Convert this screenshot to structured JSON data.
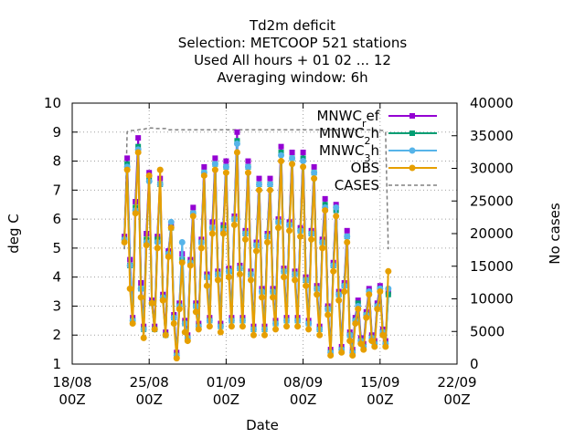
{
  "chart_data": {
    "type": "line",
    "title_lines": [
      "Td2m deficit",
      "Selection: METCOOP    521 stations",
      "Used  All hours  + 01 02 ... 12",
      "Averaging window:  6h"
    ],
    "xlabel": "Date",
    "ylabel": "deg C",
    "y2label": "No cases",
    "ylim": [
      1,
      10
    ],
    "y2lim": [
      0,
      40000
    ],
    "yticks": [
      "1",
      "2",
      "3",
      "4",
      "5",
      "6",
      "7",
      "8",
      "9",
      "10"
    ],
    "y2ticks": [
      "0",
      "5000",
      "10000",
      "15000",
      "20000",
      "25000",
      "30000",
      "35000",
      "40000"
    ],
    "xticks": [
      {
        "day": 0,
        "line1": "18/08",
        "line2": "00Z"
      },
      {
        "day": 7,
        "line1": "25/08",
        "line2": "00Z"
      },
      {
        "day": 14,
        "line1": "01/09",
        "line2": "00Z"
      },
      {
        "day": 21,
        "line1": "08/09",
        "line2": "00Z"
      },
      {
        "day": 28,
        "line1": "15/09",
        "line2": "00Z"
      },
      {
        "day": 35,
        "line1": "22/09",
        "line2": "00Z"
      }
    ],
    "x_range_days": [
      0,
      35
    ],
    "x_axis_origin": "18/08 00Z",
    "x_step_hours": 6,
    "x_start_day": 4.75,
    "grid": true,
    "legend_position": "top-right",
    "series": [
      {
        "name": "MNWC_ref",
        "label_main": "MNWC",
        "label_sub": "r",
        "label_tail": "ef",
        "color": "#9400d3",
        "marker": "square",
        "values": [
          5.4,
          8.1,
          4.6,
          2.6,
          6.6,
          8.8,
          3.8,
          2.3,
          5.5,
          7.6,
          3.2,
          2.3,
          5.4,
          7.4,
          3.4,
          2.1,
          4.9,
          5.8,
          2.7,
          1.4,
          3.1,
          4.8,
          2.5,
          2.0,
          4.6,
          6.4,
          3.1,
          2.4,
          5.3,
          7.8,
          4.1,
          2.6,
          5.9,
          8.1,
          4.2,
          2.4,
          5.8,
          8.0,
          4.3,
          2.6,
          6.1,
          9.0,
          4.4,
          2.6,
          5.6,
          8.0,
          4.2,
          2.3,
          5.2,
          7.4,
          3.6,
          2.3,
          5.5,
          7.4,
          3.6,
          2.5,
          6.0,
          8.5,
          4.3,
          2.6,
          5.9,
          8.3,
          4.2,
          2.6,
          5.7,
          8.3,
          4.0,
          2.5,
          5.6,
          7.8,
          3.7,
          2.3,
          5.3,
          6.7,
          3.0,
          1.5,
          4.5,
          6.5,
          3.5,
          1.6,
          3.8,
          5.6,
          2.1,
          1.5,
          2.6,
          3.2,
          1.9,
          1.7,
          2.8,
          3.6,
          2.0,
          1.8,
          3.1,
          3.7,
          2.2,
          1.8,
          3.5
        ]
      },
      {
        "name": "MNWC_2h",
        "label_main": "MNWC",
        "label_sub": "2",
        "label_tail": "h",
        "color": "#009e73",
        "marker": "square",
        "values": [
          5.3,
          7.9,
          4.4,
          2.5,
          6.4,
          8.5,
          3.6,
          2.2,
          5.3,
          7.4,
          3.1,
          2.2,
          5.3,
          7.2,
          3.3,
          2.0,
          4.8,
          5.7,
          2.6,
          1.3,
          3.0,
          4.6,
          2.4,
          1.9,
          4.5,
          6.2,
          3.0,
          2.3,
          5.2,
          7.6,
          4.0,
          2.5,
          5.7,
          7.9,
          4.1,
          2.3,
          5.7,
          7.8,
          4.2,
          2.5,
          6.0,
          8.7,
          4.3,
          2.5,
          5.5,
          7.8,
          4.1,
          2.2,
          5.1,
          7.2,
          3.5,
          2.2,
          5.4,
          7.2,
          3.5,
          2.4,
          5.9,
          8.3,
          4.2,
          2.5,
          5.8,
          8.1,
          4.1,
          2.5,
          5.6,
          8.1,
          3.9,
          2.4,
          5.5,
          7.6,
          3.6,
          2.2,
          5.2,
          6.5,
          2.9,
          1.4,
          4.4,
          6.3,
          3.4,
          1.5,
          3.7,
          5.4,
          2.0,
          1.4,
          2.5,
          3.1,
          1.8,
          1.6,
          2.7,
          3.5,
          1.9,
          1.7,
          3.0,
          3.6,
          2.1,
          1.7,
          3.4
        ]
      },
      {
        "name": "MNWC_3h",
        "label_main": "MNWC",
        "label_sub": "3",
        "label_tail": "h",
        "color": "#56b4e9",
        "marker": "circle",
        "values": [
          5.3,
          7.8,
          4.4,
          2.5,
          6.3,
          8.4,
          3.6,
          2.2,
          5.2,
          7.3,
          3.1,
          2.2,
          5.2,
          7.2,
          3.3,
          2.0,
          4.8,
          5.9,
          2.6,
          1.3,
          3.0,
          5.2,
          2.4,
          1.9,
          4.5,
          6.2,
          3.0,
          2.3,
          5.2,
          7.6,
          4.0,
          2.5,
          5.7,
          7.9,
          4.1,
          2.3,
          5.6,
          7.8,
          4.2,
          2.5,
          6.0,
          8.6,
          4.3,
          2.5,
          5.5,
          7.8,
          4.1,
          2.2,
          5.1,
          7.2,
          3.5,
          2.2,
          5.4,
          7.2,
          3.5,
          2.4,
          5.9,
          8.2,
          4.2,
          2.5,
          5.8,
          8.1,
          4.1,
          2.5,
          5.6,
          8.0,
          3.9,
          2.4,
          5.5,
          7.6,
          3.6,
          2.2,
          5.2,
          6.4,
          2.9,
          1.4,
          4.4,
          6.4,
          3.4,
          1.5,
          3.7,
          5.4,
          2.0,
          1.4,
          2.5,
          3.0,
          1.8,
          1.6,
          2.7,
          3.5,
          1.9,
          1.7,
          3.0,
          3.6,
          2.1,
          1.7,
          3.6
        ]
      },
      {
        "name": "OBS",
        "label_main": "OBS",
        "label_sub": "",
        "label_tail": "",
        "color": "#e69f00",
        "marker": "circle",
        "values": [
          5.2,
          7.7,
          3.6,
          2.4,
          6.2,
          8.3,
          3.3,
          1.9,
          5.1,
          7.5,
          3.1,
          2.2,
          5.0,
          7.7,
          3.2,
          2.0,
          4.7,
          5.7,
          2.4,
          1.2,
          2.9,
          4.5,
          2.1,
          1.8,
          4.4,
          6.1,
          2.8,
          2.2,
          5.0,
          7.5,
          3.7,
          2.3,
          5.5,
          7.7,
          3.9,
          2.1,
          5.5,
          7.6,
          4.0,
          2.3,
          5.8,
          8.3,
          4.1,
          2.3,
          5.3,
          7.6,
          3.9,
          2.0,
          4.9,
          7.0,
          3.3,
          2.0,
          5.2,
          7.0,
          3.3,
          2.2,
          5.7,
          8.0,
          4.0,
          2.3,
          5.6,
          7.9,
          3.9,
          2.3,
          5.4,
          7.8,
          3.7,
          2.2,
          5.3,
          7.4,
          3.4,
          2.0,
          5.0,
          6.3,
          2.7,
          1.3,
          4.2,
          6.1,
          3.2,
          1.4,
          3.5,
          5.2,
          1.8,
          1.3,
          2.4,
          2.9,
          1.7,
          1.5,
          2.6,
          3.4,
          1.8,
          1.6,
          2.9,
          3.5,
          2.0,
          1.6,
          4.2
        ]
      },
      {
        "name": "CASES",
        "label_main": "CASES",
        "label_sub": "",
        "label_tail": "",
        "color": "#808080",
        "marker": "none",
        "axis": "y2",
        "values": [
          17600,
          35600,
          35800,
          35800,
          35800,
          35900,
          36000,
          36000,
          36100,
          36200,
          36200,
          36100,
          36100,
          36100,
          36100,
          36100,
          35900,
          35900,
          35900,
          35900,
          35900,
          35900,
          35900,
          35900,
          35900,
          35900,
          35900,
          35900,
          35900,
          35900,
          35900,
          35900,
          35900,
          35900,
          35900,
          35900,
          35900,
          35900,
          35900,
          35900,
          35900,
          35900,
          35900,
          35900,
          35900,
          35900,
          35900,
          35900,
          35900,
          35900,
          35900,
          35900,
          35900,
          35900,
          35900,
          35900,
          35900,
          35900,
          35900,
          35900,
          35900,
          35900,
          35900,
          35900,
          35900,
          35900,
          35900,
          35900,
          35900,
          35900,
          35900,
          35900,
          35900,
          35900,
          35900,
          35900,
          35900,
          35900,
          35900,
          35900,
          35900,
          35900,
          35900,
          35900,
          35900,
          35900,
          35900,
          35900,
          35900,
          35900,
          35900,
          35900,
          35900,
          35800,
          35800,
          35600,
          17600
        ]
      }
    ]
  }
}
